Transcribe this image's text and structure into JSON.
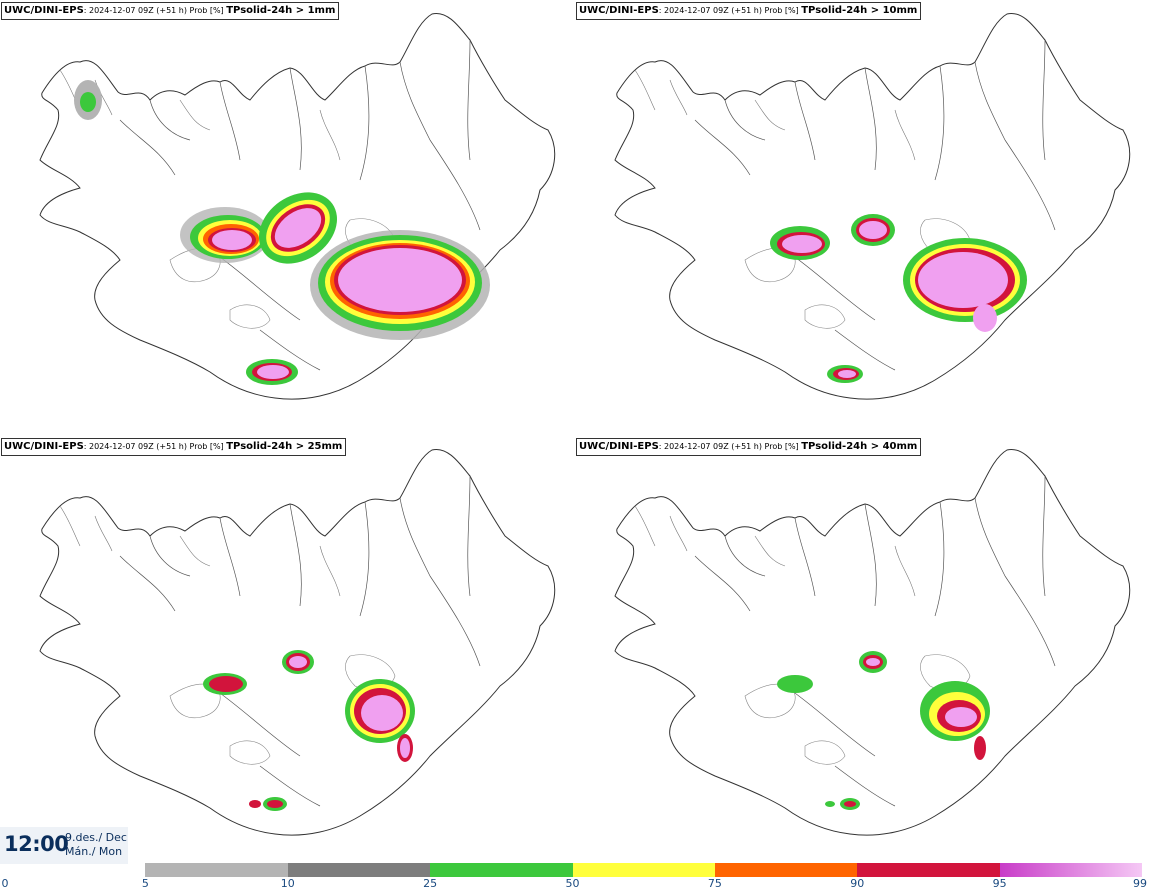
{
  "panels": [
    {
      "model": "UWC/DINI-EPS",
      "meta": ": 2024-12-07 09Z (+51 h) Prob [%] ",
      "field": "TPsolid-24h > 1mm"
    },
    {
      "model": "UWC/DINI-EPS",
      "meta": ": 2024-12-07 09Z (+51 h) Prob [%] ",
      "field": "TPsolid-24h > 10mm"
    },
    {
      "model": "UWC/DINI-EPS",
      "meta": ": 2024-12-07 09Z (+51 h) Prob [%] ",
      "field": "TPsolid-24h > 25mm"
    },
    {
      "model": "UWC/DINI-EPS",
      "meta": ": 2024-12-07 09Z (+51 h) Prob [%] ",
      "field": "TPsolid-24h > 40mm"
    }
  ],
  "valid_time": {
    "time": "12:00",
    "date_line1": "9.des./ Dec",
    "date_line2": "Mán./ Mon"
  },
  "legend": {
    "ticks": [
      "0",
      "5",
      "10",
      "25",
      "50",
      "75",
      "90",
      "95",
      "99"
    ],
    "bins": [
      {
        "from": 5,
        "to": 10,
        "color": "#b4b4b4"
      },
      {
        "from": 10,
        "to": 25,
        "color": "#7d7d7d"
      },
      {
        "from": 25,
        "to": 50,
        "color": "#3cc83c"
      },
      {
        "from": 50,
        "to": 75,
        "color": "#ffff3c"
      },
      {
        "from": 75,
        "to": 90,
        "color": "#ff6400"
      },
      {
        "from": 90,
        "to": 95,
        "color": "#d2143c"
      },
      {
        "from": 95,
        "to": 99,
        "color": "#c83cc8",
        "to_color": "#f5c8f5"
      }
    ]
  },
  "probability_colors": {
    "p5": "#b4b4b4",
    "p10": "#7d7d7d",
    "p25": "#3cc83c",
    "p50": "#ffff3c",
    "p75": "#ff6400",
    "p90": "#d2143c",
    "p95": "#c83cc8",
    "p99": "#f0a0f0"
  }
}
